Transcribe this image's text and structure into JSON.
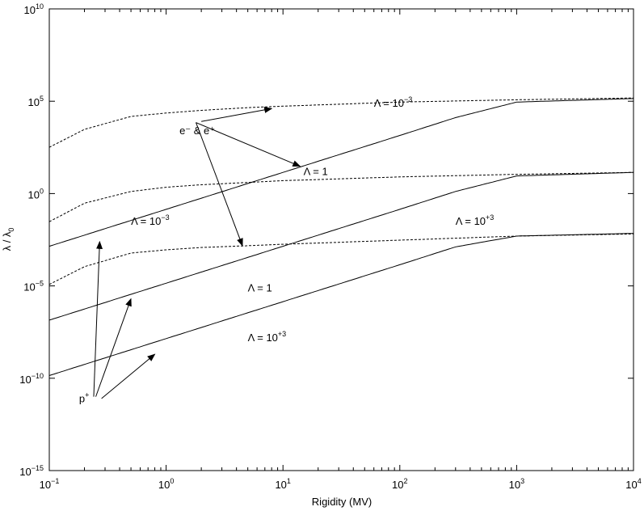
{
  "chart_data": {
    "type": "line",
    "xlabel": "Rigidity (MV)",
    "ylabel": "λ / λ",
    "ylabel_sub": "0",
    "xscale": "log",
    "yscale": "log",
    "xlim": [
      0.1,
      10000
    ],
    "ylim": [
      1e-15,
      10000000000.0
    ],
    "grid": false,
    "legend": "none",
    "x_ticks": [
      {
        "value": 0.1,
        "base": "10",
        "exp": "−1"
      },
      {
        "value": 1,
        "base": "10",
        "exp": "0"
      },
      {
        "value": 10,
        "base": "10",
        "exp": "1"
      },
      {
        "value": 100,
        "base": "10",
        "exp": "2"
      },
      {
        "value": 1000,
        "base": "10",
        "exp": "3"
      },
      {
        "value": 10000,
        "base": "10",
        "exp": "4"
      }
    ],
    "y_ticks": [
      {
        "value": 10000000000.0,
        "base": "10",
        "exp": "10"
      },
      {
        "value": 100000.0,
        "base": "10",
        "exp": "5"
      },
      {
        "value": 1,
        "base": "10",
        "exp": "0"
      },
      {
        "value": 1e-05,
        "base": "10",
        "exp": "−5"
      },
      {
        "value": 1e-10,
        "base": "10",
        "exp": "−10"
      },
      {
        "value": 1e-15,
        "base": "10",
        "exp": "−15"
      }
    ],
    "series": [
      {
        "style": "dashed",
        "x": [
          0.1,
          0.2,
          0.5,
          1,
          2,
          5,
          10,
          100,
          1000,
          10000
        ],
        "y": [
          320.0,
          3000.0,
          15000.0,
          23000.0,
          32000.0,
          45000.0,
          54000.0,
          90000.0,
          120000.0,
          150000.0
        ]
      },
      {
        "style": "dashed",
        "x": [
          0.1,
          0.2,
          0.5,
          1,
          2,
          5,
          10,
          100,
          1000,
          10000
        ],
        "y": [
          0.03,
          0.3,
          1.3,
          2.2,
          3.0,
          4.0,
          5.0,
          8.0,
          11,
          14
        ]
      },
      {
        "style": "dashed",
        "x": [
          0.1,
          0.2,
          0.5,
          1,
          2,
          5,
          10,
          100,
          1000,
          10000
        ],
        "y": [
          1.2e-05,
          0.00011,
          0.0006,
          0.0009,
          0.0012,
          0.0015,
          0.0018,
          0.003,
          0.005,
          0.0065
        ]
      },
      {
        "style": "solid",
        "x": [
          0.1,
          1,
          10,
          100,
          300,
          1000,
          10000
        ],
        "y": [
          0.0014,
          0.14,
          14.0,
          1400.0,
          13000.0,
          90000.0,
          140000.0
        ]
      },
      {
        "style": "solid",
        "x": [
          0.1,
          1,
          10,
          100,
          300,
          1000,
          10000
        ],
        "y": [
          1.4e-07,
          1.4e-05,
          0.0014,
          0.14,
          1.3,
          9.0,
          14
        ]
      },
      {
        "style": "solid",
        "x": [
          0.1,
          1,
          10,
          100,
          300,
          1000,
          10000
        ],
        "y": [
          1.4e-10,
          1.4e-08,
          1.4e-06,
          0.00014,
          0.0013,
          0.005,
          0.007
        ]
      }
    ],
    "annotations": [
      {
        "text": "e⁻ & e⁺",
        "x": 1.3,
        "y": 1600.0
      },
      {
        "text": "Λ = 10",
        "sup": "−3",
        "x": 60,
        "y": 50000.0
      },
      {
        "text": "Λ = 1",
        "x": 15,
        "y": 10.0
      },
      {
        "text": "Λ = 10",
        "sup": "+3",
        "x": 300,
        "y": 0.02
      },
      {
        "text": "Λ = 10",
        "sup": "−3",
        "x": 0.5,
        "y": 0.02
      },
      {
        "text": "Λ = 1",
        "x": 5,
        "y": 5e-06
      },
      {
        "text": "Λ = 10",
        "sup": "+3",
        "x": 5,
        "y": 1e-08
      },
      {
        "text": "p",
        "sup": "+",
        "x": 0.18,
        "y": 5e-12
      }
    ],
    "arrows": [
      {
        "from": [
          2.0,
          8000.0
        ],
        "to": [
          8.0,
          40000.0
        ]
      },
      {
        "from": [
          1.8,
          7000.0
        ],
        "to": [
          14,
          30.0
        ]
      },
      {
        "from": [
          1.8,
          7000.0
        ],
        "to": [
          4.5,
          0.0015
        ]
      },
      {
        "from": [
          0.24,
          1e-11
        ],
        "to": [
          0.27,
          0.0025
        ]
      },
      {
        "from": [
          0.25,
          1e-11
        ],
        "to": [
          0.5,
          2e-06
        ]
      },
      {
        "from": [
          0.28,
          8e-12
        ],
        "to": [
          0.8,
          2e-09
        ]
      }
    ]
  }
}
